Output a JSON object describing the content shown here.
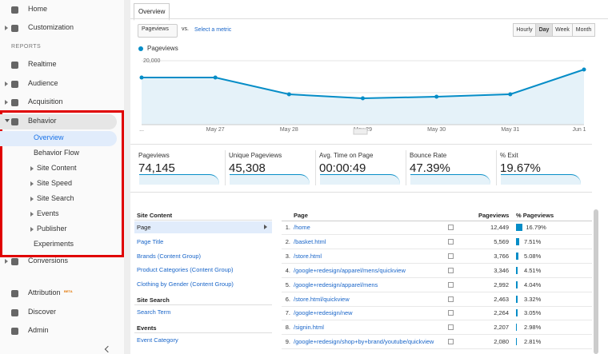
{
  "sidebar": {
    "top": [
      "Home",
      "Customization"
    ],
    "section": "REPORTS",
    "reports": [
      "Realtime",
      "Audience",
      "Acquisition",
      "Behavior"
    ],
    "behavior_items": [
      "Overview",
      "Behavior Flow",
      "Site Content",
      "Site Speed",
      "Site Search",
      "Events",
      "Publisher",
      "Experiments"
    ],
    "after": [
      "Conversions"
    ],
    "bottom": [
      "Attribution",
      "Discover",
      "Admin"
    ],
    "attribution_badge": "BETA"
  },
  "tab": "Overview",
  "controls": {
    "metric": "Pageviews",
    "vs": "vs.",
    "select_metric": "Select a metric",
    "intervals": [
      "Hourly",
      "Day",
      "Week",
      "Month"
    ],
    "active_interval": "Day"
  },
  "chart_data": {
    "type": "line",
    "series": [
      {
        "name": "Pageviews",
        "color": "#058dc7",
        "values": [
          14750,
          14750,
          9500,
          8250,
          8750,
          9500,
          17250
        ]
      }
    ],
    "categories": [
      "...",
      "May 27",
      "May 28",
      "May 29",
      "May 30",
      "May 31",
      "Jun 1"
    ],
    "ylim": [
      0,
      20000
    ],
    "yticks": [
      {
        "value": 10000,
        "label": "10,000"
      },
      {
        "value": 20000,
        "label": "20,000"
      }
    ],
    "grid": true
  },
  "scorecards": [
    {
      "label": "Pageviews",
      "value": "74,145"
    },
    {
      "label": "Unique Pageviews",
      "value": "45,308"
    },
    {
      "label": "Avg. Time on Page",
      "value": "00:00:49"
    },
    {
      "label": "Bounce Rate",
      "value": "47.39%"
    },
    {
      "label": "% Exit",
      "value": "19.67%"
    }
  ],
  "dimensions": {
    "groups": [
      {
        "title": "Site Content",
        "items": [
          "Page",
          "Page Title",
          "Brands (Content Group)",
          "Product Categories (Content Group)",
          "Clothing by Gender (Content Group)"
        ]
      },
      {
        "title": "Site Search",
        "items": [
          "Search Term"
        ]
      },
      {
        "title": "Events",
        "items": [
          "Event Category"
        ]
      }
    ],
    "selected": "Page"
  },
  "table": {
    "headers": [
      "Page",
      "Pageviews",
      "% Pageviews"
    ],
    "rows": [
      {
        "index": "1.",
        "page": "/home",
        "pageviews": "12,449",
        "percent": 16.79,
        "percent_label": "16.79%"
      },
      {
        "index": "2.",
        "page": "/basket.html",
        "pageviews": "5,569",
        "percent": 7.51,
        "percent_label": "7.51%"
      },
      {
        "index": "3.",
        "page": "/store.html",
        "pageviews": "3,766",
        "percent": 5.08,
        "percent_label": "5.08%"
      },
      {
        "index": "4.",
        "page": "/google+redesign/apparel/mens/quickview",
        "pageviews": "3,346",
        "percent": 4.51,
        "percent_label": "4.51%"
      },
      {
        "index": "5.",
        "page": "/google+redesign/apparel/mens",
        "pageviews": "2,992",
        "percent": 4.04,
        "percent_label": "4.04%"
      },
      {
        "index": "6.",
        "page": "/store.html/quickview",
        "pageviews": "2,463",
        "percent": 3.32,
        "percent_label": "3.32%"
      },
      {
        "index": "7.",
        "page": "/google+redesign/new",
        "pageviews": "2,264",
        "percent": 3.05,
        "percent_label": "3.05%"
      },
      {
        "index": "8.",
        "page": "/signin.html",
        "pageviews": "2,207",
        "percent": 2.98,
        "percent_label": "2.98%"
      },
      {
        "index": "9.",
        "page": "/google+redesign/shop+by+brand/youtube/quickview",
        "pageviews": "2,080",
        "percent": 2.81,
        "percent_label": "2.81%"
      }
    ]
  }
}
